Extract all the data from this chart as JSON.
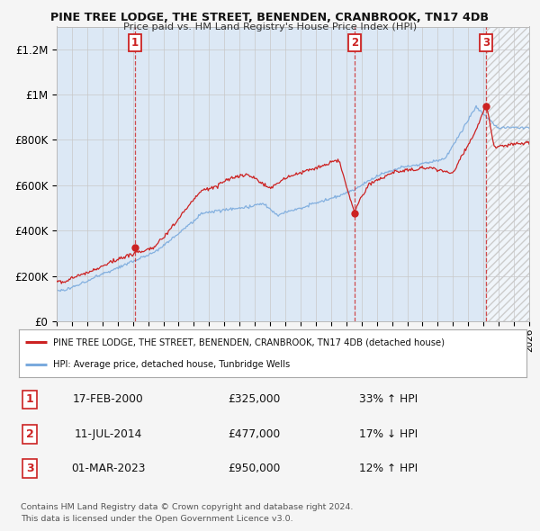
{
  "title": "PINE TREE LODGE, THE STREET, BENENDEN, CRANBROOK, TN17 4DB",
  "subtitle": "Price paid vs. HM Land Registry's House Price Index (HPI)",
  "ylim": [
    0,
    1300000
  ],
  "yticks": [
    0,
    200000,
    400000,
    600000,
    800000,
    1000000,
    1200000
  ],
  "ytick_labels": [
    "£0",
    "£200K",
    "£400K",
    "£600K",
    "£800K",
    "£1M",
    "£1.2M"
  ],
  "background_color": "#f5f5f5",
  "plot_bg_color": "#dce8f5",
  "red_color": "#cc2222",
  "blue_color": "#7aaadd",
  "vline_dates": [
    2000.12,
    2014.54,
    2023.17
  ],
  "sale_points": [
    {
      "date_num": 2000.12,
      "price": 325000,
      "label": "1"
    },
    {
      "date_num": 2014.54,
      "price": 477000,
      "label": "2"
    },
    {
      "date_num": 2023.17,
      "price": 950000,
      "label": "3"
    }
  ],
  "legend_entry1": "PINE TREE LODGE, THE STREET, BENENDEN, CRANBROOK, TN17 4DB (detached house)",
  "legend_entry2": "HPI: Average price, detached house, Tunbridge Wells",
  "table_data": [
    {
      "num": "1",
      "date": "17-FEB-2000",
      "price": "£325,000",
      "change": "33% ↑ HPI"
    },
    {
      "num": "2",
      "date": "11-JUL-2014",
      "price": "£477,000",
      "change": "17% ↓ HPI"
    },
    {
      "num": "3",
      "date": "01-MAR-2023",
      "price": "£950,000",
      "change": "12% ↑ HPI"
    }
  ],
  "footnote": "Contains HM Land Registry data © Crown copyright and database right 2024.\nThis data is licensed under the Open Government Licence v3.0.",
  "xmin": 1995.0,
  "xmax": 2026.0
}
